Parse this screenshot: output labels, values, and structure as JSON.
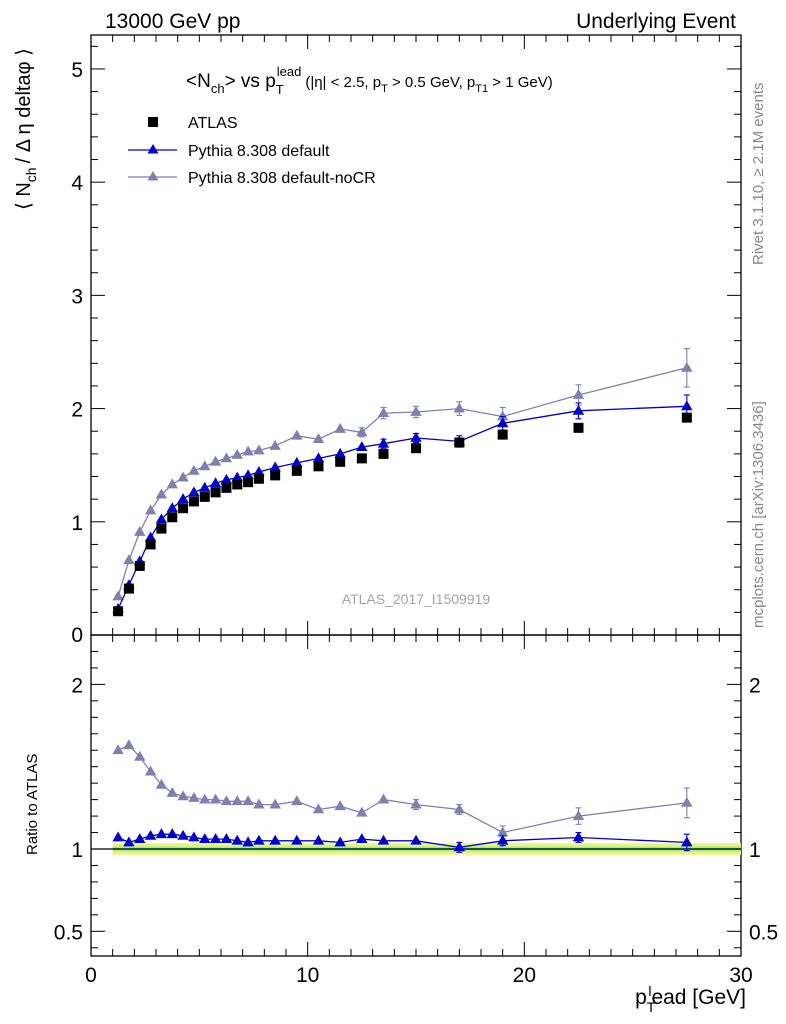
{
  "header": {
    "left": "13000 GeV pp",
    "right": "Underlying Event"
  },
  "side_labels": {
    "rivet": "Rivet 3.1.10, ≥ 2.1M events",
    "mcplots": "mcplots.cern.ch [arXiv:1306.3436]"
  },
  "watermark": "ATLAS_2017_I1509919",
  "colors": {
    "atlas": "#000000",
    "default": "#0000cc",
    "nocr": "#8080b0",
    "band_outer": "#f0f07a",
    "band_inner": "#99ee99",
    "ref_line": "#00aa00"
  },
  "chart_data": [
    {
      "type": "scatter",
      "title": "<Nch> vs pTlead (|η| < 2.5, pT > 0.5 GeV, pT1 > 1 GeV)",
      "title_parts": {
        "pre": "<N",
        "sub1": "ch",
        "mid": "> vs p",
        "sub2": "T",
        "sup2": "lead",
        "paren_a": "(|η| < 2.5, p",
        "sub3": "T",
        "paren_b": " > 0.5 GeV, p",
        "sub4": "T1",
        "paren_c": " > 1 GeV)"
      },
      "ylabel": "⟨ N_ch / Δ η deltaφ ⟩",
      "ylabel_parts": {
        "pre": "⟨ N",
        "sub": "ch",
        "post": "/ Δ η deltaφ ⟩"
      },
      "xlim": [
        0,
        30
      ],
      "ylim": [
        0,
        5.3
      ],
      "yticks": [
        1,
        2,
        3,
        4,
        5
      ],
      "ytick_labels": [
        "1",
        "2",
        "3",
        "4",
        "5"
      ],
      "y_axis_partial_label": "0",
      "legend_position": "top-left",
      "series": [
        {
          "name": "ATLAS",
          "marker": "square",
          "x": [
            1.25,
            1.75,
            2.25,
            2.75,
            3.25,
            3.75,
            4.25,
            4.75,
            5.25,
            5.75,
            6.25,
            6.75,
            7.25,
            7.75,
            8.5,
            9.5,
            10.5,
            11.5,
            12.5,
            13.5,
            15.0,
            17.0,
            19.0,
            22.5,
            27.5
          ],
          "y": [
            0.21,
            0.41,
            0.61,
            0.8,
            0.94,
            1.04,
            1.12,
            1.18,
            1.22,
            1.26,
            1.3,
            1.33,
            1.35,
            1.38,
            1.41,
            1.45,
            1.49,
            1.53,
            1.56,
            1.6,
            1.65,
            1.7,
            1.77,
            1.83,
            1.92
          ]
        },
        {
          "name": "Pythia 8.308 default",
          "marker": "triangle",
          "x": [
            1.25,
            1.75,
            2.25,
            2.75,
            3.25,
            3.75,
            4.25,
            4.75,
            5.25,
            5.75,
            6.25,
            6.75,
            7.25,
            7.75,
            8.5,
            9.5,
            10.5,
            11.5,
            12.5,
            13.5,
            15.0,
            17.0,
            19.0,
            22.5,
            27.5
          ],
          "y": [
            0.23,
            0.44,
            0.65,
            0.86,
            1.02,
            1.12,
            1.2,
            1.26,
            1.3,
            1.34,
            1.37,
            1.39,
            1.41,
            1.44,
            1.48,
            1.52,
            1.56,
            1.6,
            1.66,
            1.69,
            1.74,
            1.71,
            1.87,
            1.98,
            2.02
          ],
          "yerr": [
            0.01,
            0.01,
            0.01,
            0.01,
            0.01,
            0.01,
            0.01,
            0.01,
            0.01,
            0.01,
            0.01,
            0.01,
            0.01,
            0.01,
            0.02,
            0.02,
            0.02,
            0.03,
            0.03,
            0.04,
            0.04,
            0.05,
            0.06,
            0.07,
            0.1
          ]
        },
        {
          "name": "Pythia 8.308 default-noCR",
          "marker": "triangle",
          "x": [
            1.25,
            1.75,
            2.25,
            2.75,
            3.25,
            3.75,
            4.25,
            4.75,
            5.25,
            5.75,
            6.25,
            6.75,
            7.25,
            7.75,
            8.5,
            9.5,
            10.5,
            11.5,
            12.5,
            13.5,
            15.0,
            17.0,
            19.0,
            22.5,
            27.5
          ],
          "y": [
            0.34,
            0.66,
            0.91,
            1.1,
            1.24,
            1.33,
            1.39,
            1.45,
            1.49,
            1.53,
            1.56,
            1.59,
            1.62,
            1.63,
            1.67,
            1.76,
            1.73,
            1.82,
            1.79,
            1.96,
            1.97,
            2.0,
            1.93,
            2.12,
            2.36
          ],
          "yerr": [
            0.01,
            0.01,
            0.01,
            0.01,
            0.01,
            0.01,
            0.01,
            0.02,
            0.02,
            0.02,
            0.02,
            0.02,
            0.02,
            0.02,
            0.02,
            0.03,
            0.03,
            0.03,
            0.04,
            0.05,
            0.05,
            0.06,
            0.08,
            0.09,
            0.17
          ]
        }
      ]
    },
    {
      "type": "scatter",
      "ylabel": "Ratio to ATLAS",
      "xlabel": "p_T^lead [GeV]",
      "xlabel_parts": {
        "pre": "p",
        "sub": "T",
        "sup": "l",
        "post": "ead [GeV]"
      },
      "xlim": [
        0,
        30
      ],
      "ylim": [
        0.35,
        2.3
      ],
      "yticks": [
        0.5,
        1,
        2
      ],
      "ytick_labels": [
        "0.5",
        "1",
        "2"
      ],
      "xticks": [
        0,
        10,
        20,
        30
      ],
      "xtick_labels": [
        "0",
        "10",
        "20",
        "30"
      ],
      "reference": 1.0,
      "series": [
        {
          "name": "Pythia 8.308 default",
          "x": [
            1.25,
            1.75,
            2.25,
            2.75,
            3.25,
            3.75,
            4.25,
            4.75,
            5.25,
            5.75,
            6.25,
            6.75,
            7.25,
            7.75,
            8.5,
            9.5,
            10.5,
            11.5,
            12.5,
            13.5,
            15.0,
            17.0,
            19.0,
            22.5,
            27.5
          ],
          "y": [
            1.07,
            1.04,
            1.06,
            1.08,
            1.09,
            1.09,
            1.08,
            1.07,
            1.06,
            1.06,
            1.06,
            1.05,
            1.04,
            1.05,
            1.05,
            1.05,
            1.05,
            1.04,
            1.06,
            1.05,
            1.05,
            1.01,
            1.05,
            1.07,
            1.04
          ],
          "yerr": [
            0.01,
            0.01,
            0.01,
            0.01,
            0.01,
            0.01,
            0.01,
            0.01,
            0.01,
            0.01,
            0.01,
            0.01,
            0.01,
            0.01,
            0.01,
            0.01,
            0.01,
            0.01,
            0.01,
            0.02,
            0.02,
            0.03,
            0.03,
            0.03,
            0.05
          ]
        },
        {
          "name": "Pythia 8.308 default-noCR",
          "x": [
            1.25,
            1.75,
            2.25,
            2.75,
            3.25,
            3.75,
            4.25,
            4.75,
            5.25,
            5.75,
            6.25,
            6.75,
            7.25,
            7.75,
            8.5,
            9.5,
            10.5,
            11.5,
            12.5,
            13.5,
            15.0,
            17.0,
            19.0,
            22.5,
            27.5
          ],
          "y": [
            1.6,
            1.63,
            1.56,
            1.47,
            1.39,
            1.34,
            1.32,
            1.31,
            1.3,
            1.3,
            1.29,
            1.29,
            1.29,
            1.27,
            1.27,
            1.29,
            1.24,
            1.26,
            1.22,
            1.3,
            1.27,
            1.24,
            1.1,
            1.2,
            1.28
          ],
          "yerr": [
            0.01,
            0.01,
            0.01,
            0.01,
            0.01,
            0.01,
            0.01,
            0.01,
            0.01,
            0.01,
            0.01,
            0.01,
            0.01,
            0.01,
            0.01,
            0.01,
            0.02,
            0.02,
            0.02,
            0.02,
            0.03,
            0.03,
            0.04,
            0.05,
            0.09
          ]
        }
      ]
    }
  ]
}
